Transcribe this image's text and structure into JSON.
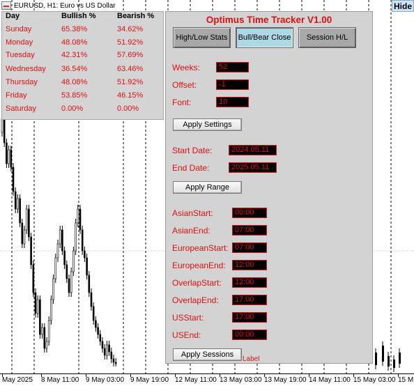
{
  "chart": {
    "title": "EURUSD, H1:  Euro vs US Dollar",
    "hide_label": "Hide",
    "x_ticks": [
      "May 2025",
      "8 May 11:00",
      "9 May 03:00",
      "9 May 19:00",
      "12 May 11:00",
      "13 May 03:00",
      "13 May 19:00",
      "14 May 11:00",
      "15 May 03:00",
      "15 M"
    ]
  },
  "stats": {
    "headers": [
      "Day",
      "Bullish %",
      "Bearish %"
    ],
    "rows": [
      {
        "day": "Sunday",
        "bull": "65.38%",
        "bear": "34.62%"
      },
      {
        "day": "Monday",
        "bull": "48.08%",
        "bear": "51.92%"
      },
      {
        "day": "Tuesday",
        "bull": "42.31%",
        "bear": "57.69%"
      },
      {
        "day": "Wednesday",
        "bull": "36.54%",
        "bear": "63.46%"
      },
      {
        "day": "Thursday",
        "bull": "48.08%",
        "bear": "51.92%"
      },
      {
        "day": "Friday",
        "bull": "53.85%",
        "bear": "46.15%"
      },
      {
        "day": "Saturday",
        "bull": "0.00%",
        "bear": "0.00%"
      }
    ]
  },
  "panel": {
    "title": "Optimus Time Tracker V1.00",
    "tabs": [
      "High/Low Stats",
      "Bull/Bear Close",
      "Session H/L"
    ],
    "active_tab": "Bull/Bear Close",
    "settings": [
      {
        "label": "Weeks:",
        "value": "52"
      },
      {
        "label": "Offset:",
        "value": "-1"
      },
      {
        "label": "Font:",
        "value": "10"
      }
    ],
    "apply_settings": "Apply Settings",
    "range": [
      {
        "label": "Start Date:",
        "value": "2024.05.11"
      },
      {
        "label": "End Date:",
        "value": "2025.05.11"
      }
    ],
    "apply_range": "Apply Range",
    "sessions": [
      {
        "label": "AsianStart:",
        "value": "00:00"
      },
      {
        "label": "AsianEnd:",
        "value": "07:00"
      },
      {
        "label": "EuropeanStart:",
        "value": "07:00"
      },
      {
        "label": "EuropeanEnd:",
        "value": "12:00"
      },
      {
        "label": "OverlapStart:",
        "value": "12:00"
      },
      {
        "label": "OverlapEnd:",
        "value": "17:00"
      },
      {
        "label": "USStart:",
        "value": "17:00"
      },
      {
        "label": "USEnd:",
        "value": "00:00"
      }
    ],
    "apply_sessions": "Apply Sessions",
    "footer_label": "Label"
  },
  "colors": {
    "accent_red": "#e01010",
    "panel_bg": "#d3d3d3",
    "active_tab": "#add8e6",
    "field_bg": "#000000"
  }
}
